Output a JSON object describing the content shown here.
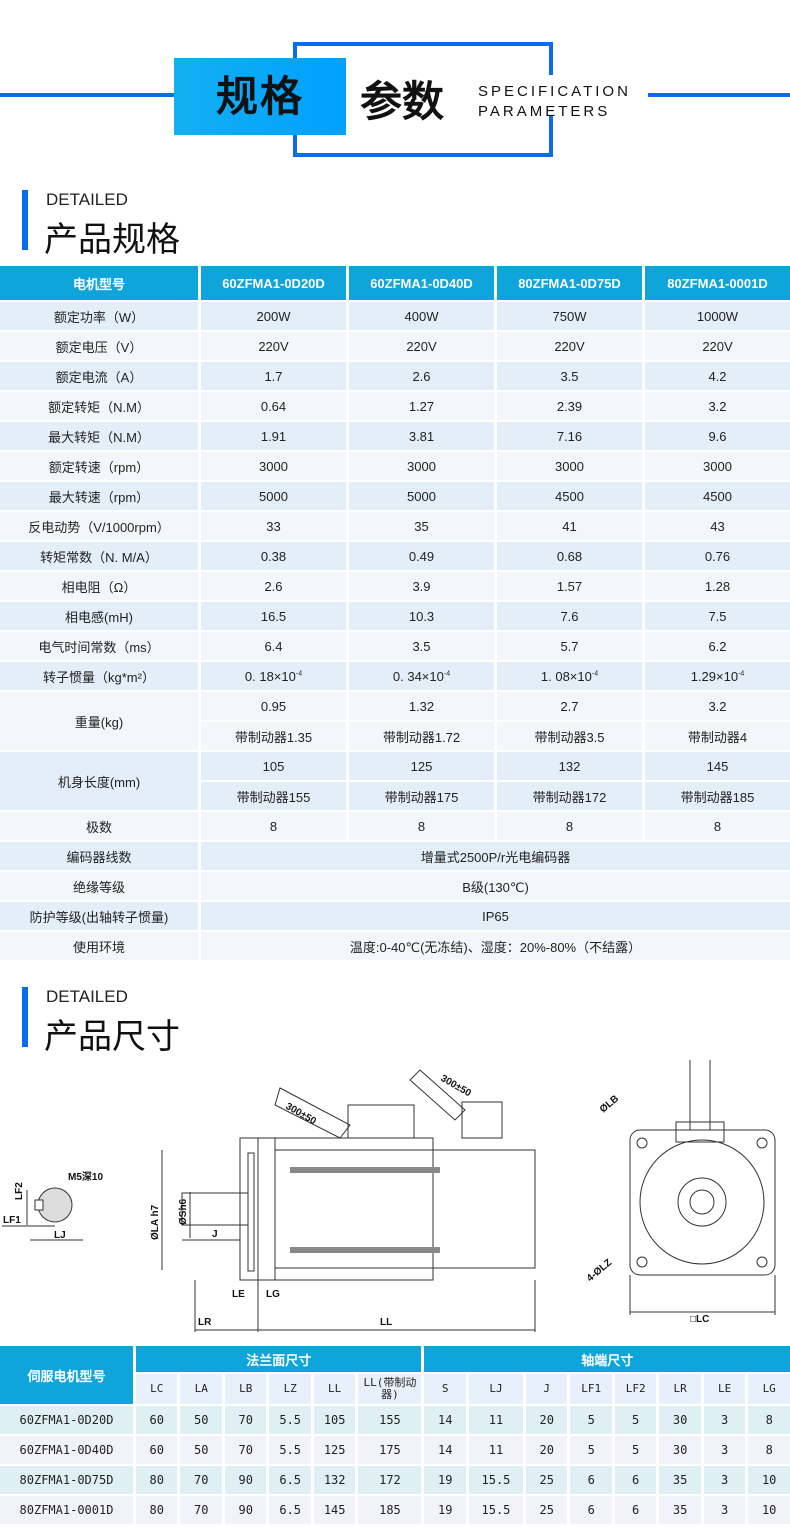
{
  "banner": {
    "title_left": "规格",
    "title_right": "参数",
    "english_line1": "SPECIFICATION",
    "english_line2": "PARAMETERS"
  },
  "section1": {
    "en": "DETAILED",
    "cn": "产品规格"
  },
  "section2": {
    "en": "DETAILED",
    "cn": "产品尺寸"
  },
  "spec_table": {
    "headers": [
      "电机型号",
      "60ZFMA1-0D20D",
      "60ZFMA1-0D40D",
      "80ZFMA1-0D75D",
      "80ZFMA1-0001D"
    ],
    "rows": [
      {
        "label": "额定功率（W）",
        "values": [
          "200W",
          "400W",
          "750W",
          "1000W"
        ]
      },
      {
        "label": "额定电压（V）",
        "values": [
          "220V",
          "220V",
          "220V",
          "220V"
        ]
      },
      {
        "label": "额定电流（A）",
        "values": [
          "1.7",
          "2.6",
          "3.5",
          "4.2"
        ]
      },
      {
        "label": "额定转矩（N.M）",
        "values": [
          "0.64",
          "1.27",
          "2.39",
          "3.2"
        ]
      },
      {
        "label": "最大转矩（N.M）",
        "values": [
          "1.91",
          "3.81",
          "7.16",
          "9.6"
        ]
      },
      {
        "label": "额定转速（rpm）",
        "values": [
          "3000",
          "3000",
          "3000",
          "3000"
        ]
      },
      {
        "label": "最大转速（rpm）",
        "values": [
          "5000",
          "5000",
          "4500",
          "4500"
        ]
      },
      {
        "label": "反电动势（V/1000rpm）",
        "values": [
          "33",
          "35",
          "41",
          "43"
        ]
      },
      {
        "label": "转矩常数（N. M/A）",
        "values": [
          "0.38",
          "0.49",
          "0.68",
          "0.76"
        ]
      },
      {
        "label": "相电阻（Ω）",
        "values": [
          "2.6",
          "3.9",
          "1.57",
          "1.28"
        ]
      },
      {
        "label": "相电感(mH)",
        "values": [
          "16.5",
          "10.3",
          "7.6",
          "7.5"
        ]
      },
      {
        "label": "电气时间常数（ms）",
        "values": [
          "6.4",
          "3.5",
          "5.7",
          "6.2"
        ]
      }
    ],
    "inertia": {
      "label": "转子惯量（kg*m²）",
      "values": [
        "0. 18×10",
        "0. 34×10",
        "1. 08×10",
        "1.29×10"
      ],
      "exponent": "-4"
    },
    "weight": {
      "label": "重量(kg)",
      "values": [
        "0.95",
        "1.32",
        "2.7",
        "3.2"
      ],
      "brake_values": [
        "带制动器1.35",
        "带制动器1.72",
        "带制动器3.5",
        "带制动器4"
      ]
    },
    "length": {
      "label": "机身长度(mm)",
      "values": [
        "105",
        "125",
        "132",
        "145"
      ],
      "brake_values": [
        "带制动器155",
        "带制动器175",
        "带制动器172",
        "带制动器185"
      ]
    },
    "poles": {
      "label": "极数",
      "values": [
        "8",
        "8",
        "8",
        "8"
      ]
    },
    "merged": [
      {
        "label": "编码器线数",
        "value": "增量式2500P/r光电编码器"
      },
      {
        "label": "绝缘等级",
        "value": "B级(130℃)"
      },
      {
        "label": "防护等级(出轴转子惯量)",
        "value": "IP65"
      },
      {
        "label": "使用环境",
        "value": "温度:0-40℃(无冻结)、湿度：20%-80%（不结露）"
      }
    ]
  },
  "drawing": {
    "labels": {
      "m5": "M5深10",
      "lf2": "LF2",
      "lf1": "LF1",
      "lj": "LJ",
      "la": "ØLA h7",
      "sh": "ØSh6",
      "j": "J",
      "le": "LE",
      "lg": "LG",
      "lr": "LR",
      "ll": "LL",
      "cable1": "300±50",
      "cable2": "300±50",
      "lb": "ØLB",
      "lz": "4-ØLZ",
      "lc": "□LC"
    }
  },
  "dim_table": {
    "model_header": "伺服电机型号",
    "group1": "法兰面尺寸",
    "group2": "轴端尺寸",
    "columns": [
      "LC",
      "LA",
      "LB",
      "LZ",
      "LL",
      "LL(带制动器)",
      "S",
      "LJ",
      "J",
      "LF1",
      "LF2",
      "LR",
      "LE",
      "LG"
    ],
    "rows": [
      {
        "model": "60ZFMA1-0D20D",
        "values": [
          "60",
          "50",
          "70",
          "5.5",
          "105",
          "155",
          "14",
          "11",
          "20",
          "5",
          "5",
          "30",
          "3",
          "8"
        ]
      },
      {
        "model": "60ZFMA1-0D40D",
        "values": [
          "60",
          "50",
          "70",
          "5.5",
          "125",
          "175",
          "14",
          "11",
          "20",
          "5",
          "5",
          "30",
          "3",
          "8"
        ]
      },
      {
        "model": "80ZFMA1-0D75D",
        "values": [
          "80",
          "70",
          "90",
          "6.5",
          "132",
          "172",
          "19",
          "15.5",
          "25",
          "6",
          "6",
          "35",
          "3",
          "10"
        ]
      },
      {
        "model": "80ZFMA1-0001D",
        "values": [
          "80",
          "70",
          "90",
          "6.5",
          "145",
          "185",
          "19",
          "15.5",
          "25",
          "6",
          "6",
          "35",
          "3",
          "10"
        ]
      }
    ]
  }
}
